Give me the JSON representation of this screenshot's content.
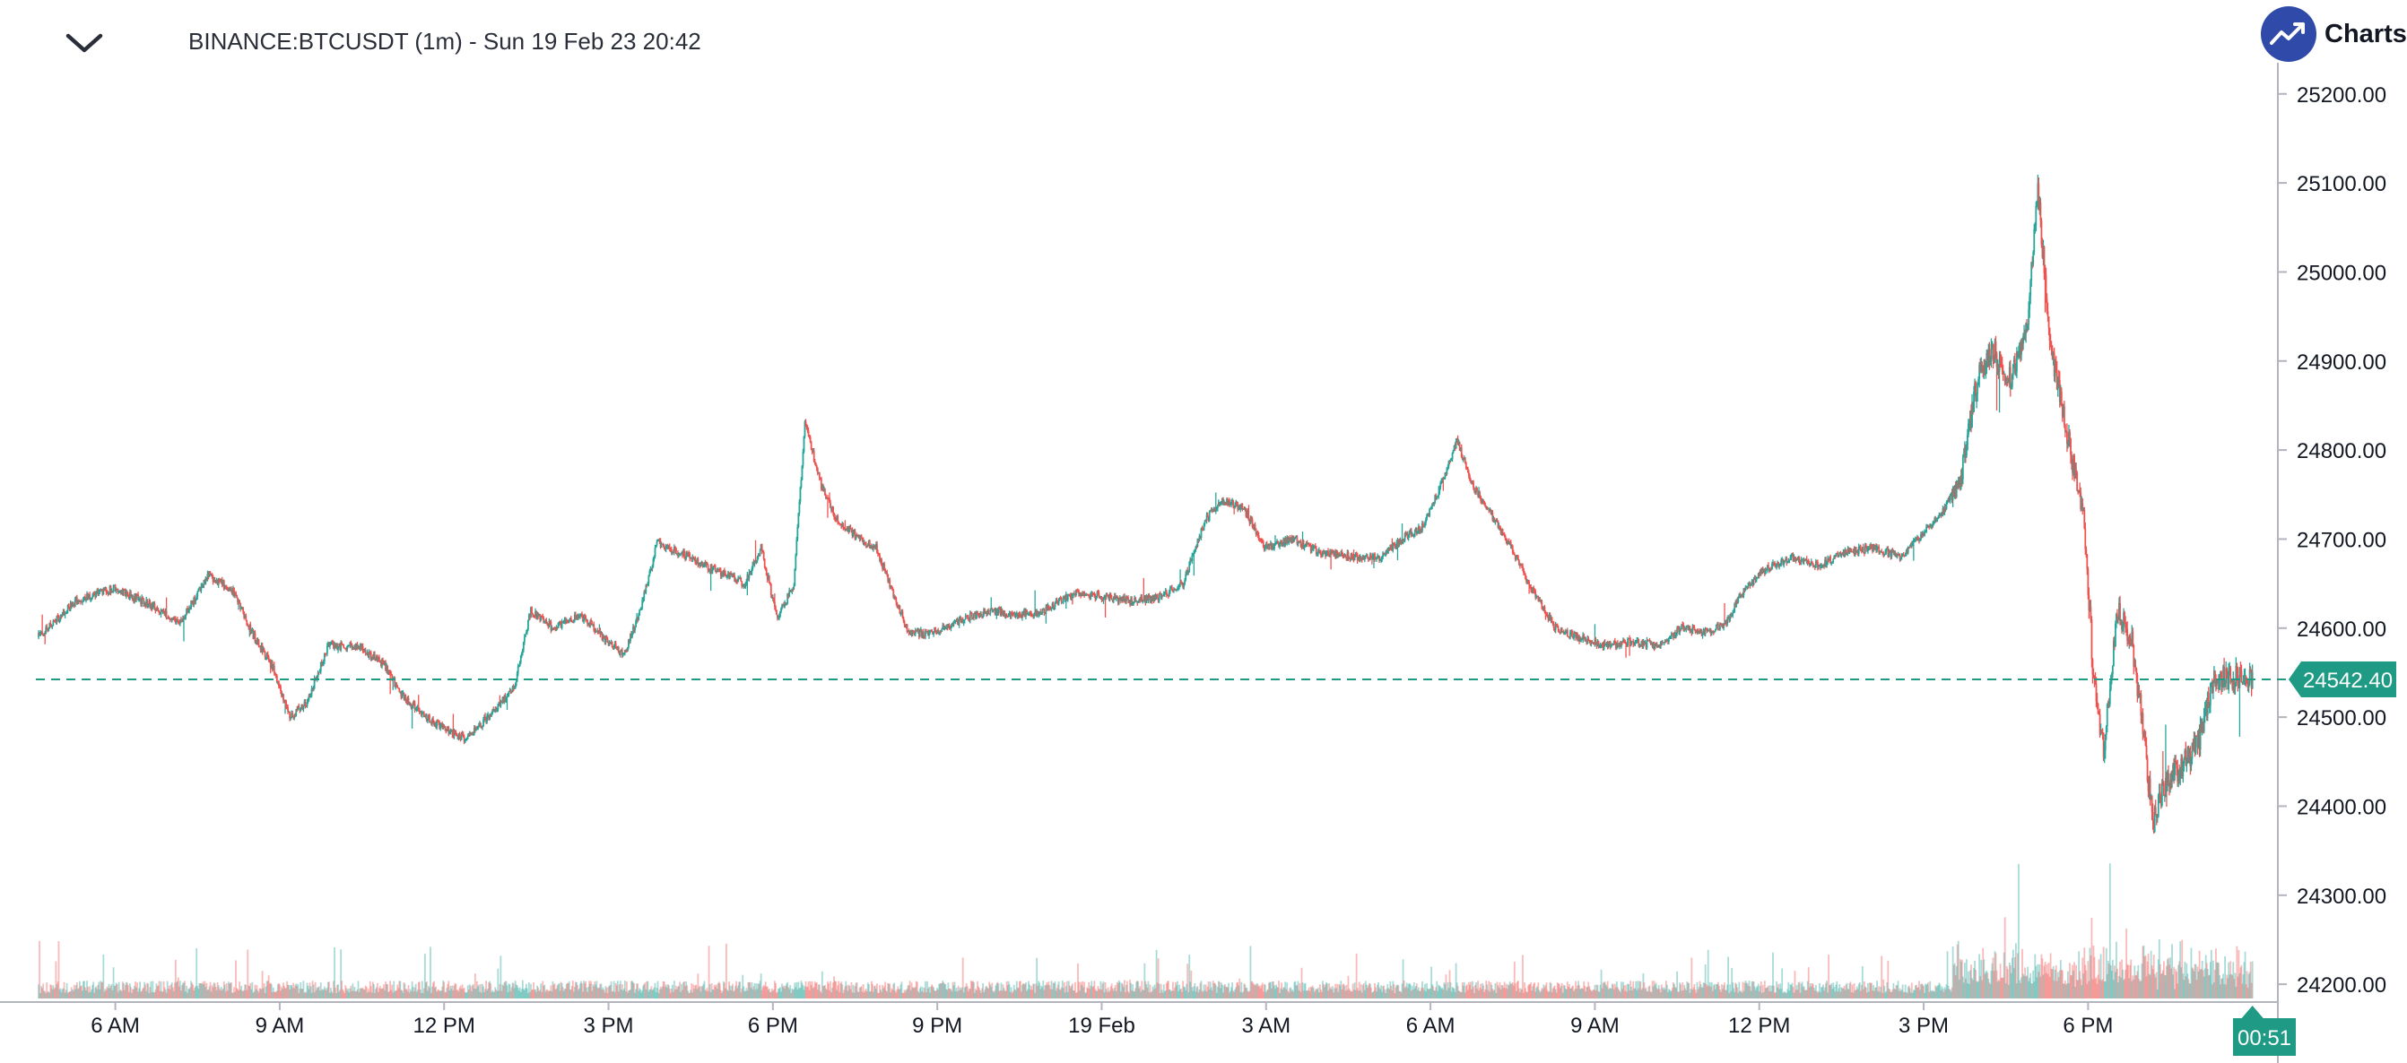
{
  "header": {
    "title": "BINANCE:BTCUSDT (1m) - Sun 19 Feb 23 20:42",
    "collapse_icon": "chevron-down-icon"
  },
  "brand": {
    "label": "Charts p",
    "icon": "trend-up-icon",
    "color": "#2f4aa8"
  },
  "colors": {
    "up": "#26a69a",
    "down": "#ef5350",
    "price_line": "#1f9a84",
    "axis": "#b2b5be",
    "text": "#131722"
  },
  "chart_data": {
    "type": "candlestick",
    "symbol": "BINANCE:BTCUSDT",
    "interval": "1m",
    "last_price": "24542.40",
    "countdown": "00:51",
    "y_ticks": [
      24200,
      24300,
      24400,
      24500,
      24600,
      24700,
      24800,
      24900,
      25000,
      25100,
      25200
    ],
    "y_tick_labels": [
      "24200.00",
      "24300.00",
      "24400.00",
      "24500.00",
      "24600.00",
      "24700.00",
      "24800.00",
      "24900.00",
      "25000.00",
      "25100.00",
      "25200.00"
    ],
    "ylim": [
      24180,
      25235
    ],
    "x_ticks": [
      {
        "hour": 6,
        "label": "6 AM"
      },
      {
        "hour": 9,
        "label": "9 AM"
      },
      {
        "hour": 12,
        "label": "12 PM"
      },
      {
        "hour": 15,
        "label": "3 PM"
      },
      {
        "hour": 18,
        "label": "6 PM"
      },
      {
        "hour": 21,
        "label": "9 PM"
      },
      {
        "hour": 24,
        "label": "19 Feb"
      },
      {
        "hour": 27,
        "label": "3 AM"
      },
      {
        "hour": 30,
        "label": "6 AM"
      },
      {
        "hour": 33,
        "label": "9 AM"
      },
      {
        "hour": 36,
        "label": "12 PM"
      },
      {
        "hour": 39,
        "label": "3 PM"
      },
      {
        "hour": 42,
        "label": "6 PM"
      }
    ],
    "xlim_hours": [
      4.55,
      45.3
    ],
    "price_path": [
      [
        4.6,
        24590
      ],
      [
        5.3,
        24630
      ],
      [
        6.0,
        24645
      ],
      [
        6.7,
        24625
      ],
      [
        7.2,
        24605
      ],
      [
        7.7,
        24660
      ],
      [
        8.2,
        24640
      ],
      [
        8.5,
        24595
      ],
      [
        8.9,
        24555
      ],
      [
        9.2,
        24500
      ],
      [
        9.5,
        24515
      ],
      [
        9.9,
        24580
      ],
      [
        10.4,
        24580
      ],
      [
        10.9,
        24560
      ],
      [
        11.3,
        24520
      ],
      [
        11.8,
        24495
      ],
      [
        12.4,
        24475
      ],
      [
        12.9,
        24505
      ],
      [
        13.3,
        24535
      ],
      [
        13.6,
        24620
      ],
      [
        14.0,
        24600
      ],
      [
        14.5,
        24615
      ],
      [
        15.0,
        24585
      ],
      [
        15.3,
        24570
      ],
      [
        15.6,
        24620
      ],
      [
        15.9,
        24695
      ],
      [
        16.3,
        24685
      ],
      [
        16.8,
        24670
      ],
      [
        17.5,
        24650
      ],
      [
        17.8,
        24690
      ],
      [
        18.1,
        24610
      ],
      [
        18.4,
        24650
      ],
      [
        18.6,
        24830
      ],
      [
        18.9,
        24760
      ],
      [
        19.2,
        24720
      ],
      [
        19.6,
        24700
      ],
      [
        19.9,
        24690
      ],
      [
        20.2,
        24640
      ],
      [
        20.5,
        24595
      ],
      [
        20.9,
        24595
      ],
      [
        21.5,
        24610
      ],
      [
        22.0,
        24620
      ],
      [
        22.5,
        24615
      ],
      [
        23.0,
        24620
      ],
      [
        23.5,
        24640
      ],
      [
        24.0,
        24635
      ],
      [
        24.6,
        24630
      ],
      [
        25.1,
        24635
      ],
      [
        25.5,
        24650
      ],
      [
        25.9,
        24720
      ],
      [
        26.2,
        24745
      ],
      [
        26.6,
        24735
      ],
      [
        27.0,
        24690
      ],
      [
        27.5,
        24700
      ],
      [
        28.0,
        24685
      ],
      [
        28.6,
        24680
      ],
      [
        29.1,
        24680
      ],
      [
        29.5,
        24700
      ],
      [
        29.9,
        24715
      ],
      [
        30.2,
        24760
      ],
      [
        30.5,
        24810
      ],
      [
        30.8,
        24760
      ],
      [
        31.1,
        24730
      ],
      [
        31.5,
        24690
      ],
      [
        31.9,
        24640
      ],
      [
        32.3,
        24600
      ],
      [
        32.7,
        24590
      ],
      [
        33.2,
        24580
      ],
      [
        33.7,
        24585
      ],
      [
        34.2,
        24580
      ],
      [
        34.6,
        24600
      ],
      [
        35.0,
        24595
      ],
      [
        35.4,
        24605
      ],
      [
        35.7,
        24640
      ],
      [
        36.1,
        24665
      ],
      [
        36.6,
        24680
      ],
      [
        37.1,
        24670
      ],
      [
        37.6,
        24685
      ],
      [
        38.1,
        24690
      ],
      [
        38.6,
        24680
      ],
      [
        39.0,
        24705
      ],
      [
        39.4,
        24735
      ],
      [
        39.7,
        24770
      ],
      [
        40.0,
        24880
      ],
      [
        40.3,
        24910
      ],
      [
        40.6,
        24880
      ],
      [
        40.9,
        24940
      ],
      [
        41.1,
        25100
      ],
      [
        41.3,
        24930
      ],
      [
        41.5,
        24860
      ],
      [
        41.75,
        24780
      ],
      [
        41.95,
        24720
      ],
      [
        42.1,
        24560
      ],
      [
        42.3,
        24460
      ],
      [
        42.55,
        24620
      ],
      [
        42.8,
        24590
      ],
      [
        43.0,
        24500
      ],
      [
        43.2,
        24380
      ],
      [
        43.45,
        24430
      ],
      [
        43.8,
        24450
      ],
      [
        44.05,
        24475
      ],
      [
        44.3,
        24545
      ],
      [
        44.7,
        24545
      ],
      [
        45.0,
        24542.4
      ]
    ]
  }
}
